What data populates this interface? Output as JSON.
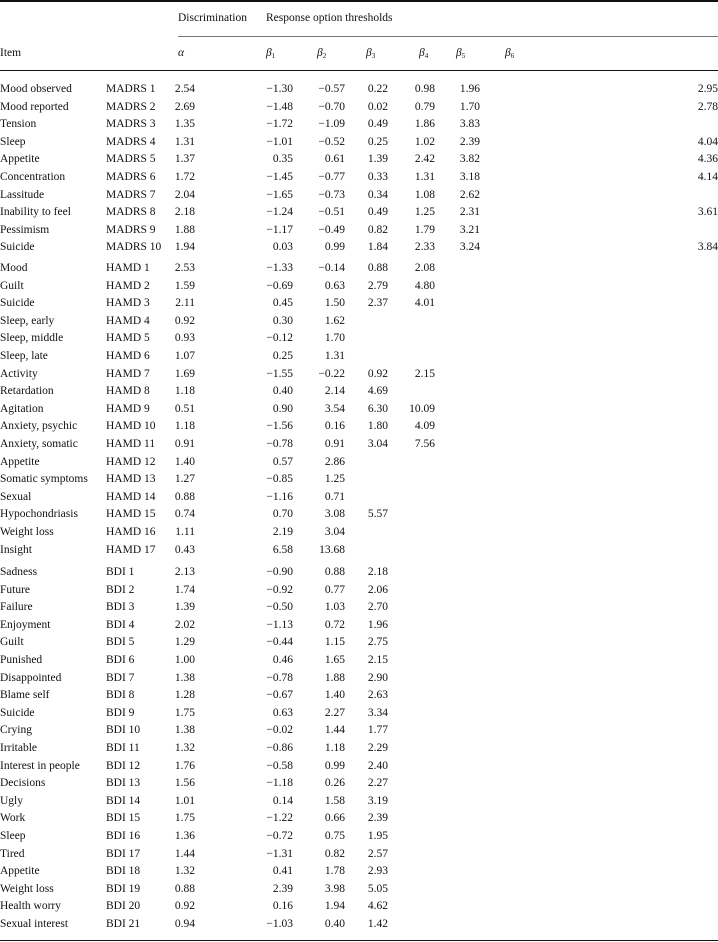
{
  "header": {
    "item_label": "Item",
    "discrimination_label": "Discrimination",
    "thresholds_label": "Response option thresholds",
    "alpha_symbol": "α",
    "beta_symbol": "β",
    "beta_subscripts": [
      "1",
      "2",
      "3",
      "4",
      "5",
      "6"
    ]
  },
  "sections": [
    {
      "rows": [
        [
          "Mood observed",
          "MADRS 1",
          "2.54",
          [
            "−1.30",
            "−0.57",
            "0.22",
            "0.98",
            "1.96",
            "2.95"
          ]
        ],
        [
          "Mood reported",
          "MADRS 2",
          "2.69",
          [
            "−1.48",
            "−0.70",
            "0.02",
            "0.79",
            "1.70",
            "2.78"
          ]
        ],
        [
          "Tension",
          "MADRS 3",
          "1.35",
          [
            "−1.72",
            "−1.09",
            "0.49",
            "1.86",
            "3.83",
            ""
          ]
        ],
        [
          "Sleep",
          "MADRS 4",
          "1.31",
          [
            "−1.01",
            "−0.52",
            "0.25",
            "1.02",
            "2.39",
            "4.04"
          ]
        ],
        [
          "Appetite",
          "MADRS 5",
          "1.37",
          [
            "0.35",
            "0.61",
            "1.39",
            "2.42",
            "3.82",
            "4.36"
          ]
        ],
        [
          "Concentration",
          "MADRS 6",
          "1.72",
          [
            "−1.45",
            "−0.77",
            "0.33",
            "1.31",
            "3.18",
            "4.14"
          ]
        ],
        [
          "Lassitude",
          "MADRS 7",
          "2.04",
          [
            "−1.65",
            "−0.73",
            "0.34",
            "1.08",
            "2.62",
            ""
          ]
        ],
        [
          "Inability to feel",
          "MADRS 8",
          "2.18",
          [
            "−1.24",
            "−0.51",
            "0.49",
            "1.25",
            "2.31",
            "3.61"
          ]
        ],
        [
          "Pessimism",
          "MADRS 9",
          "1.88",
          [
            "−1.17",
            "−0.49",
            "0.82",
            "1.79",
            "3.21",
            ""
          ]
        ],
        [
          "Suicide",
          "MADRS 10",
          "1.94",
          [
            "0.03",
            "0.99",
            "1.84",
            "2.33",
            "3.24",
            "3.84"
          ]
        ]
      ]
    },
    {
      "rows": [
        [
          "Mood",
          "HAMD 1",
          "2.53",
          [
            "−1.33",
            "−0.14",
            "0.88",
            "2.08",
            "",
            ""
          ]
        ],
        [
          "Guilt",
          "HAMD 2",
          "1.59",
          [
            "−0.69",
            "0.63",
            "2.79",
            "4.80",
            "",
            ""
          ]
        ],
        [
          "Suicide",
          "HAMD 3",
          "2.11",
          [
            "0.45",
            "1.50",
            "2.37",
            "4.01",
            "",
            ""
          ]
        ],
        [
          "Sleep, early",
          "HAMD 4",
          "0.92",
          [
            "0.30",
            "1.62",
            "",
            "",
            "",
            ""
          ]
        ],
        [
          "Sleep, middle",
          "HAMD 5",
          "0.93",
          [
            "−0.12",
            "1.70",
            "",
            "",
            "",
            ""
          ]
        ],
        [
          "Sleep, late",
          "HAMD 6",
          "1.07",
          [
            "0.25",
            "1.31",
            "",
            "",
            "",
            ""
          ]
        ],
        [
          "Activity",
          "HAMD 7",
          "1.69",
          [
            "−1.55",
            "−0.22",
            "0.92",
            "2.15",
            "",
            ""
          ]
        ],
        [
          "Retardation",
          "HAMD 8",
          "1.18",
          [
            "0.40",
            "2.14",
            "4.69",
            "",
            "",
            ""
          ]
        ],
        [
          "Agitation",
          "HAMD 9",
          "0.51",
          [
            "0.90",
            "3.54",
            "6.30",
            "10.09",
            "",
            ""
          ]
        ],
        [
          "Anxiety, psychic",
          "HAMD 10",
          "1.18",
          [
            "−1.56",
            "0.16",
            "1.80",
            "4.09",
            "",
            ""
          ]
        ],
        [
          "Anxiety, somatic",
          "HAMD 11",
          "0.91",
          [
            "−0.78",
            "0.91",
            "3.04",
            "7.56",
            "",
            ""
          ]
        ],
        [
          "Appetite",
          "HAMD 12",
          "1.40",
          [
            "0.57",
            "2.86",
            "",
            "",
            "",
            ""
          ]
        ],
        [
          "Somatic symptoms",
          "HAMD 13",
          "1.27",
          [
            "−0.85",
            "1.25",
            "",
            "",
            "",
            ""
          ]
        ],
        [
          "Sexual",
          "HAMD 14",
          "0.88",
          [
            "−1.16",
            "0.71",
            "",
            "",
            "",
            ""
          ]
        ],
        [
          "Hypochondriasis",
          "HAMD 15",
          "0.74",
          [
            "0.70",
            "3.08",
            "5.57",
            "",
            "",
            ""
          ]
        ],
        [
          "Weight loss",
          "HAMD 16",
          "1.11",
          [
            "2.19",
            "3.04",
            "",
            "",
            "",
            ""
          ]
        ],
        [
          "Insight",
          "HAMD 17",
          "0.43",
          [
            "6.58",
            "13.68",
            "",
            "",
            "",
            ""
          ]
        ]
      ]
    },
    {
      "rows": [
        [
          "Sadness",
          "BDI 1",
          "2.13",
          [
            "−0.90",
            "0.88",
            "2.18",
            "",
            "",
            ""
          ]
        ],
        [
          "Future",
          "BDI 2",
          "1.74",
          [
            "−0.92",
            "0.77",
            "2.06",
            "",
            "",
            ""
          ]
        ],
        [
          "Failure",
          "BDI 3",
          "1.39",
          [
            "−0.50",
            "1.03",
            "2.70",
            "",
            "",
            ""
          ]
        ],
        [
          "Enjoyment",
          "BDI 4",
          "2.02",
          [
            "−1.13",
            "0.72",
            "1.96",
            "",
            "",
            ""
          ]
        ],
        [
          "Guilt",
          "BDI 5",
          "1.29",
          [
            "−0.44",
            "1.15",
            "2.75",
            "",
            "",
            ""
          ]
        ],
        [
          "Punished",
          "BDI 6",
          "1.00",
          [
            "0.46",
            "1.65",
            "2.15",
            "",
            "",
            ""
          ]
        ],
        [
          "Disappointed",
          "BDI 7",
          "1.38",
          [
            "−0.78",
            "1.88",
            "2.90",
            "",
            "",
            ""
          ]
        ],
        [
          "Blame self",
          "BDI 8",
          "1.28",
          [
            "−0.67",
            "1.40",
            "2.63",
            "",
            "",
            ""
          ]
        ],
        [
          "Suicide",
          "BDI 9",
          "1.75",
          [
            "0.63",
            "2.27",
            "3.34",
            "",
            "",
            ""
          ]
        ],
        [
          "Crying",
          "BDI 10",
          "1.38",
          [
            "−0.02",
            "1.44",
            "1.77",
            "",
            "",
            ""
          ]
        ],
        [
          "Irritable",
          "BDI 11",
          "1.32",
          [
            "−0.86",
            "1.18",
            "2.29",
            "",
            "",
            ""
          ]
        ],
        [
          "Interest in people",
          "BDI 12",
          "1.76",
          [
            "−0.58",
            "0.99",
            "2.40",
            "",
            "",
            ""
          ]
        ],
        [
          "Decisions",
          "BDI 13",
          "1.56",
          [
            "−1.18",
            "0.26",
            "2.27",
            "",
            "",
            ""
          ]
        ],
        [
          "Ugly",
          "BDI 14",
          "1.01",
          [
            "0.14",
            "1.58",
            "3.19",
            "",
            "",
            ""
          ]
        ],
        [
          "Work",
          "BDI 15",
          "1.75",
          [
            "−1.22",
            "0.66",
            "2.39",
            "",
            "",
            ""
          ]
        ],
        [
          "Sleep",
          "BDI 16",
          "1.36",
          [
            "−0.72",
            "0.75",
            "1.95",
            "",
            "",
            ""
          ]
        ],
        [
          "Tired",
          "BDI 17",
          "1.44",
          [
            "−1.31",
            "0.82",
            "2.57",
            "",
            "",
            ""
          ]
        ],
        [
          "Appetite",
          "BDI 18",
          "1.32",
          [
            "0.41",
            "1.78",
            "2.93",
            "",
            "",
            ""
          ]
        ],
        [
          "Weight loss",
          "BDI 19",
          "0.88",
          [
            "2.39",
            "3.98",
            "5.05",
            "",
            "",
            ""
          ]
        ],
        [
          "Health worry",
          "BDI 20",
          "0.92",
          [
            "0.16",
            "1.94",
            "4.62",
            "",
            "",
            ""
          ]
        ],
        [
          "Sexual interest",
          "BDI 21",
          "0.94",
          [
            "−1.03",
            "0.40",
            "1.42",
            "",
            "",
            ""
          ]
        ]
      ]
    }
  ]
}
